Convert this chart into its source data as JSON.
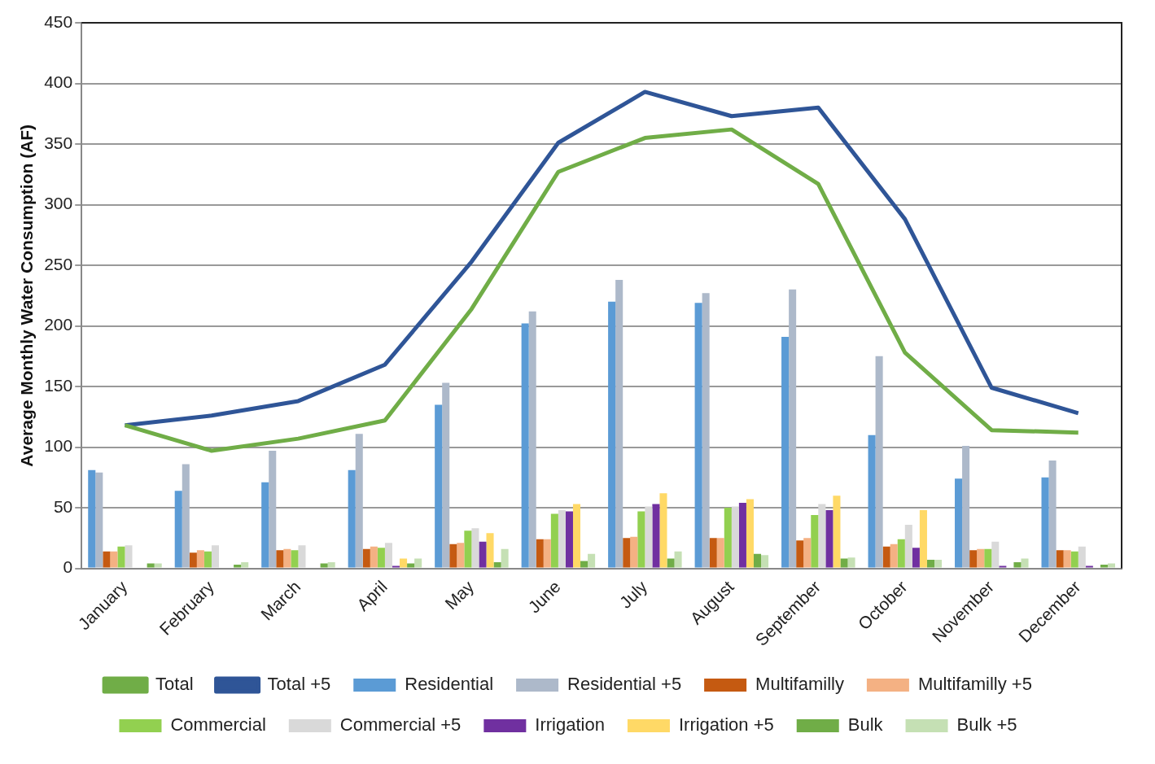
{
  "chart_data": {
    "type": "bar",
    "ylabel": "Average Monthly Water Consumption (AF)",
    "categories": [
      "January",
      "February",
      "March",
      "April",
      "May",
      "June",
      "July",
      "August",
      "September",
      "October",
      "November",
      "December"
    ],
    "ylim": [
      0,
      450
    ],
    "yticks": [
      0,
      50,
      100,
      150,
      200,
      250,
      300,
      350,
      400,
      450
    ],
    "grid": "y",
    "legend": "bottom",
    "series": [
      {
        "name": "Residential",
        "color": "#5b9bd5",
        "values": [
          81,
          64,
          71,
          81,
          135,
          202,
          220,
          219,
          191,
          110,
          74,
          75
        ]
      },
      {
        "name": "Residential +5",
        "color": "#adb9ca",
        "values": [
          79,
          86,
          97,
          111,
          153,
          212,
          238,
          227,
          230,
          175,
          101,
          89
        ]
      },
      {
        "name": "Multifamilly",
        "color": "#c55a11",
        "values": [
          14,
          13,
          15,
          16,
          20,
          24,
          25,
          25,
          23,
          18,
          15,
          15
        ]
      },
      {
        "name": "Multifamilly +5",
        "color": "#f4b183",
        "values": [
          14,
          15,
          16,
          18,
          21,
          24,
          26,
          25,
          25,
          20,
          16,
          15
        ]
      },
      {
        "name": "Commercial",
        "color": "#92d050",
        "values": [
          18,
          14,
          15,
          17,
          31,
          45,
          47,
          50,
          44,
          24,
          16,
          14
        ]
      },
      {
        "name": "Commercial +5",
        "color": "#d9d9d9",
        "values": [
          19,
          19,
          19,
          21,
          33,
          48,
          51,
          51,
          53,
          36,
          22,
          18
        ]
      },
      {
        "name": "Irrigation",
        "color": "#7030a0",
        "values": [
          0,
          0,
          0,
          2,
          22,
          47,
          53,
          54,
          48,
          17,
          2,
          2
        ]
      },
      {
        "name": "Irrigation +5",
        "color": "#ffd966",
        "values": [
          0,
          0,
          0,
          8,
          29,
          53,
          62,
          57,
          60,
          48,
          0,
          0
        ]
      },
      {
        "name": "Bulk",
        "color": "#70ad47",
        "values": [
          4,
          3,
          4,
          4,
          5,
          6,
          8,
          12,
          8,
          7,
          5,
          3
        ]
      },
      {
        "name": "Bulk +5",
        "color": "#c5e0b4",
        "values": [
          4,
          5,
          5,
          8,
          16,
          12,
          14,
          11,
          9,
          7,
          8,
          4
        ]
      },
      {
        "name": "Total",
        "type": "line",
        "color": "#70ad47",
        "values": [
          118,
          97,
          107,
          122,
          214,
          327,
          355,
          362,
          317,
          178,
          114,
          112
        ]
      },
      {
        "name": "Total +5",
        "type": "line",
        "color": "#2f5597",
        "values": [
          118,
          126,
          138,
          168,
          253,
          351,
          393,
          373,
          380,
          288,
          149,
          128
        ]
      }
    ]
  }
}
